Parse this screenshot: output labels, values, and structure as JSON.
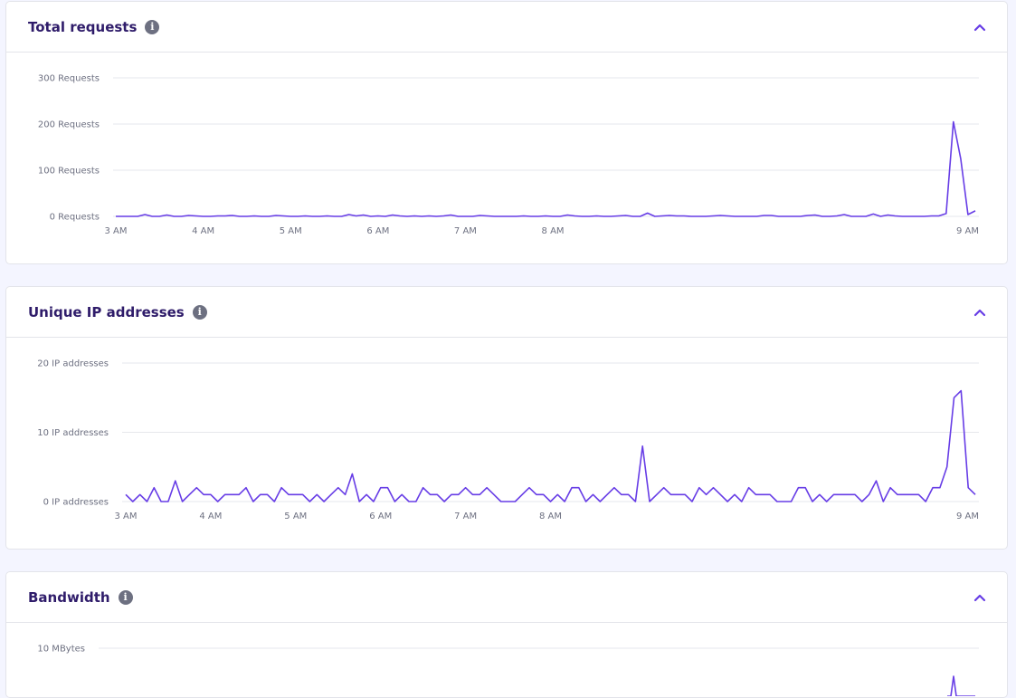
{
  "panels": [
    {
      "title": "Total requests"
    },
    {
      "title": "Unique IP addresses"
    },
    {
      "title": "Bandwidth"
    }
  ],
  "colors": {
    "accent": "#673de6",
    "title": "#2f1c6a",
    "muted": "#6d7081"
  },
  "icons": {
    "info": "info-icon",
    "collapse": "chevron-up-icon"
  },
  "chart_data": [
    {
      "type": "line",
      "title": "Total requests",
      "x_start": "3 AM",
      "x_step_minutes": 5,
      "x_ticks": [
        "3 AM",
        "4 AM",
        "5 AM",
        "6 AM",
        "7 AM",
        "8 AM",
        "9 AM"
      ],
      "y_ticks": [
        "0 Requests",
        "100 Requests",
        "200 Requests",
        "300 Requests"
      ],
      "ylim": [
        0,
        300
      ],
      "grid": true,
      "series": [
        {
          "values": [
            0,
            0,
            0,
            0,
            4,
            0,
            0,
            3,
            0,
            0,
            2,
            1,
            0,
            0,
            1,
            1,
            2,
            0,
            0,
            1,
            0,
            0,
            2,
            1,
            0,
            0,
            1,
            0,
            0,
            1,
            0,
            0,
            4,
            1,
            3,
            0,
            1,
            0,
            3,
            1,
            0,
            1,
            0,
            1,
            0,
            1,
            3,
            0,
            0,
            0,
            2,
            1,
            0,
            0,
            0,
            0,
            1,
            0,
            0,
            1,
            0,
            0,
            3,
            1,
            0,
            0,
            1,
            0,
            0,
            1,
            2,
            0,
            0,
            7,
            0,
            1,
            2,
            1,
            1,
            0,
            0,
            0,
            1,
            2,
            1,
            0,
            0,
            0,
            0,
            2,
            2,
            0,
            0,
            0,
            0,
            2,
            3,
            0,
            0,
            1,
            4,
            0,
            0,
            0,
            5,
            0,
            3,
            1,
            0,
            0,
            0,
            0,
            1,
            1,
            6,
            205,
            125,
            4,
            12
          ]
        }
      ]
    },
    {
      "type": "line",
      "title": "Unique IP addresses",
      "x_start": "3 AM",
      "x_step_minutes": 5,
      "x_ticks": [
        "3 AM",
        "4 AM",
        "5 AM",
        "6 AM",
        "7 AM",
        "8 AM",
        "9 AM"
      ],
      "y_ticks": [
        "0 IP addresses",
        "10 IP addresses",
        "20 IP addresses"
      ],
      "ylim": [
        0,
        20
      ],
      "grid": true,
      "series": [
        {
          "values": [
            1,
            0,
            1,
            0,
            2,
            0,
            0,
            3,
            0,
            1,
            2,
            1,
            1,
            0,
            1,
            1,
            1,
            2,
            0,
            1,
            1,
            0,
            2,
            1,
            1,
            1,
            0,
            1,
            0,
            1,
            2,
            1,
            4,
            0,
            1,
            0,
            2,
            2,
            0,
            1,
            0,
            0,
            2,
            1,
            1,
            0,
            1,
            1,
            2,
            1,
            1,
            2,
            1,
            0,
            0,
            0,
            1,
            2,
            1,
            1,
            0,
            1,
            0,
            2,
            2,
            0,
            1,
            0,
            1,
            2,
            1,
            1,
            0,
            8,
            0,
            1,
            2,
            1,
            1,
            1,
            0,
            2,
            1,
            2,
            1,
            0,
            1,
            0,
            2,
            1,
            1,
            1,
            0,
            0,
            0,
            2,
            2,
            0,
            1,
            0,
            1,
            1,
            1,
            1,
            0,
            1,
            3,
            0,
            2,
            1,
            1,
            1,
            1,
            0,
            2,
            2,
            5,
            15,
            16,
            2,
            1
          ]
        }
      ]
    },
    {
      "type": "line",
      "title": "Bandwidth",
      "y_ticks": [
        "10 MBytes"
      ],
      "grid": true
    }
  ]
}
